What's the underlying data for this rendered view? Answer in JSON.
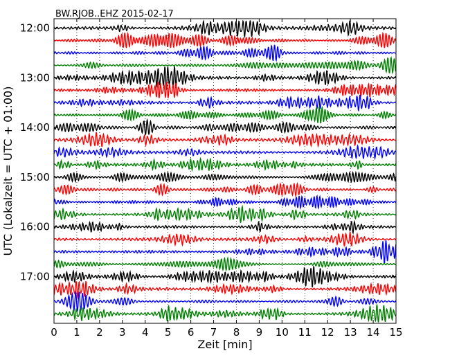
{
  "chart_data": {
    "type": "line",
    "chart_kind": "helicorder",
    "title": "BW.RJOB..EHZ 2015-02-17",
    "xlabel": "Zeit  [min]",
    "ylabel": "UTC (Lokalzeit = UTC + 01:00)",
    "xlim": [
      0,
      15
    ],
    "x_ticks": [
      "0",
      "1",
      "2",
      "3",
      "4",
      "5",
      "6",
      "7",
      "8",
      "9",
      "10",
      "11",
      "12",
      "13",
      "14",
      "15"
    ],
    "y_ticks": [
      "12:00",
      "13:00",
      "14:00",
      "15:00",
      "16:00",
      "17:00"
    ],
    "trace_start_times": [
      "12:00",
      "12:15",
      "12:30",
      "12:45",
      "13:00",
      "13:15",
      "13:30",
      "13:45",
      "14:00",
      "14:15",
      "14:30",
      "14:45",
      "15:00",
      "15:15",
      "15:30",
      "15:45",
      "16:00",
      "16:15",
      "16:30",
      "16:45",
      "17:00",
      "17:15",
      "17:30",
      "17:45"
    ],
    "trace_colors": [
      "#000000",
      "#ff0000",
      "#0000ff",
      "#008000"
    ],
    "grid": true,
    "grid_style": "dotted vertical lines at each minute"
  }
}
